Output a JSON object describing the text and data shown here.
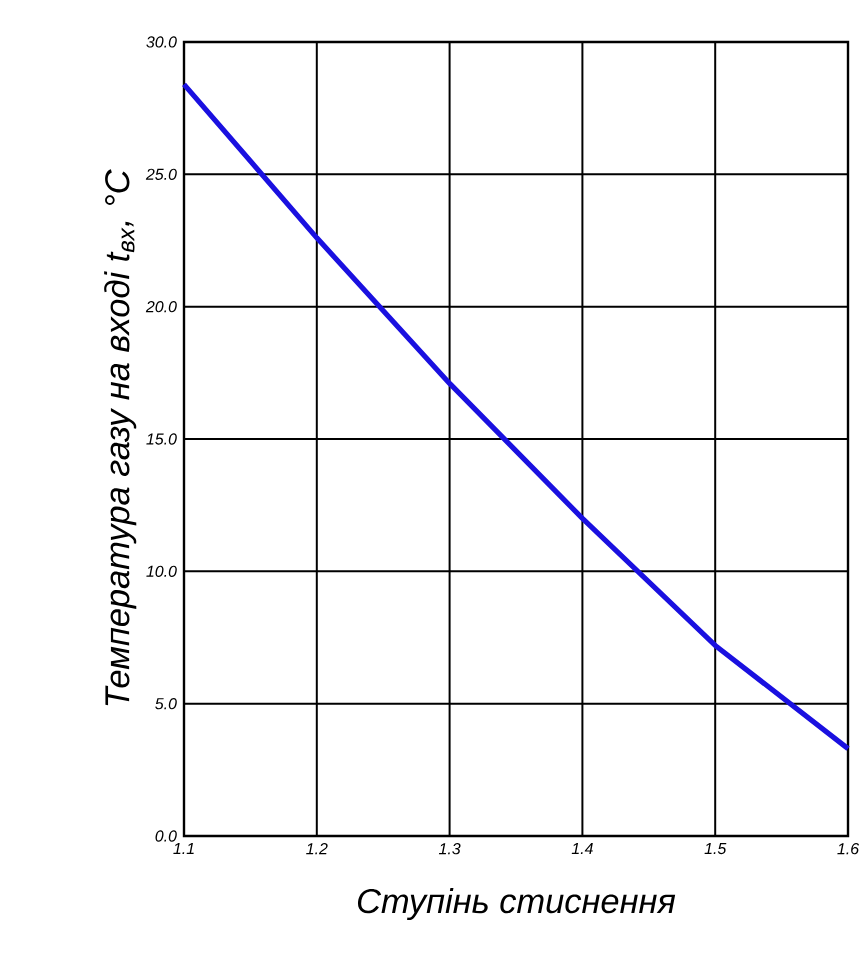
{
  "chart_data": {
    "type": "line",
    "xlabel": "Ступінь стиснення",
    "ylabel": "Температура газу на вході t$_{вх}$, °С",
    "x": [
      1.1,
      1.2,
      1.3,
      1.4,
      1.5,
      1.6
    ],
    "series": [
      {
        "color": "#1a10e0",
        "values": [
          28.4,
          22.6,
          17.1,
          12.0,
          7.2,
          3.3
        ]
      }
    ],
    "xlim": [
      1.1,
      1.6
    ],
    "ylim": [
      0,
      30
    ],
    "xticks": [
      1.1,
      1.2,
      1.3,
      1.4,
      1.5,
      1.6
    ],
    "yticks": [
      {
        "value": 0,
        "label": "0.0"
      },
      {
        "value": 5,
        "label": "5.0"
      },
      {
        "value": 10,
        "label": "10.0"
      },
      {
        "value": 15,
        "label": "15.0"
      },
      {
        "value": 20,
        "label": "20.0"
      },
      {
        "value": 25,
        "label": "25.0"
      },
      {
        "value": 30,
        "label": "30.0"
      }
    ],
    "grid": true
  }
}
